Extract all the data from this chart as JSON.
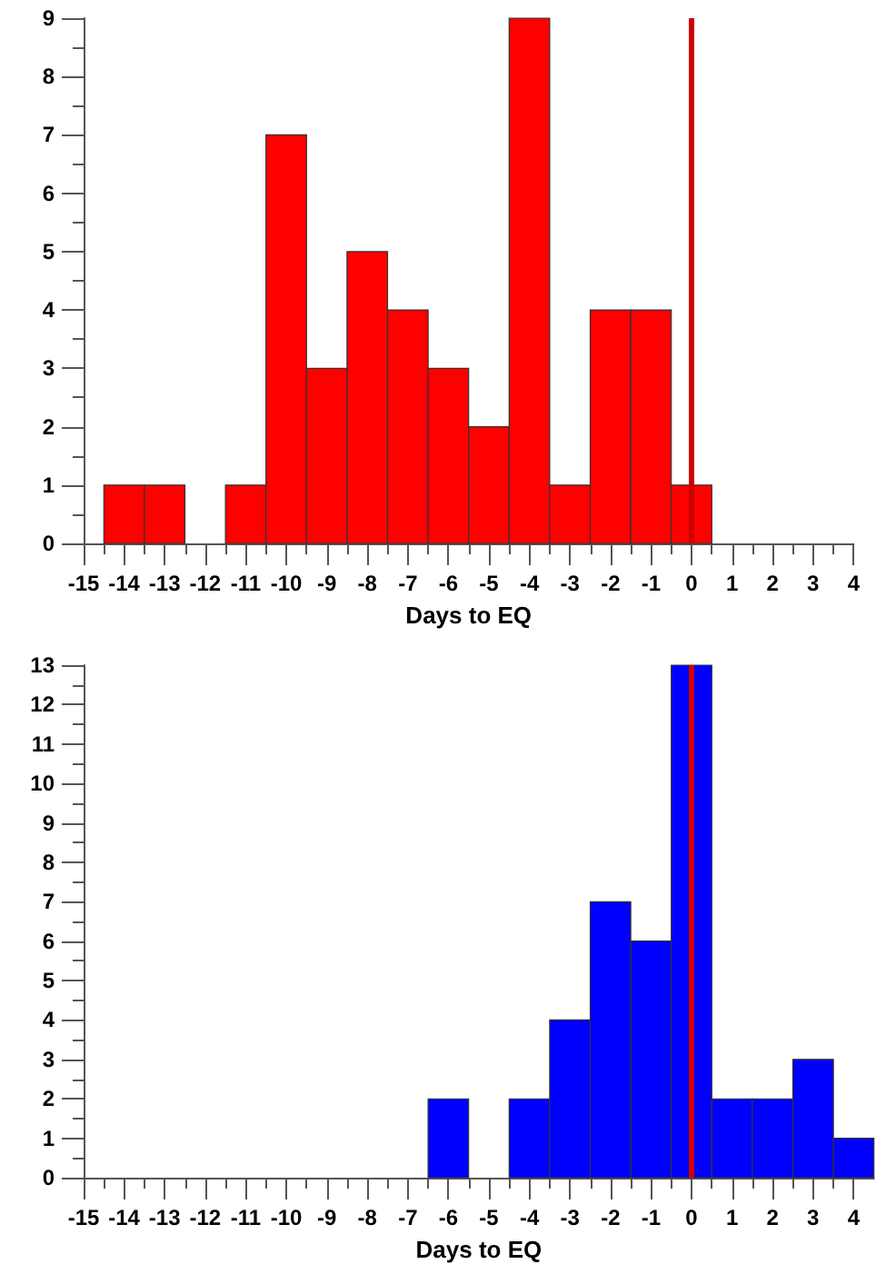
{
  "chart_data": [
    {
      "type": "histogram",
      "xlabel": "Days to EQ",
      "bins": [
        -14.5,
        -13.5,
        -12.5,
        -11.5,
        -10.5,
        -9.5,
        -8.5,
        -7.5,
        -6.5,
        -5.5,
        -4.5,
        -3.5,
        -2.5,
        -1.5,
        -0.5,
        0.5
      ],
      "values": [
        1,
        1,
        0,
        1,
        7,
        3,
        5,
        4,
        3,
        2,
        9,
        1,
        4,
        4,
        1
      ],
      "color": "#ff0000",
      "xlim": [
        -15,
        4
      ],
      "ylim": [
        0,
        9
      ],
      "xticks": [
        -15,
        {
          "value": -14.5,
          "label": null
        },
        -14,
        {
          "value": -13.5,
          "label": null
        },
        -13,
        {
          "value": -12.5,
          "label": null
        },
        -12,
        {
          "value": -11.5,
          "label": null
        },
        -11,
        {
          "value": -10.5,
          "label": null
        },
        -10,
        {
          "value": -9.5,
          "label": null
        },
        -9,
        {
          "value": -8.5,
          "label": null
        },
        -8,
        {
          "value": -7.5,
          "label": null
        },
        -7,
        {
          "value": -6.5,
          "label": null
        },
        -6,
        {
          "value": -5.5,
          "label": null
        },
        -5,
        {
          "value": -4.5,
          "label": null
        },
        -4,
        {
          "value": -3.5,
          "label": null
        },
        -3,
        {
          "value": -2.5,
          "label": null
        },
        -2,
        {
          "value": -1.5,
          "label": null
        },
        -1,
        {
          "value": -0.5,
          "label": null
        },
        0,
        {
          "value": 0.5,
          "label": null
        },
        1,
        {
          "value": 1.5,
          "label": null
        },
        2,
        {
          "value": 2.5,
          "label": null
        },
        3,
        {
          "value": 3.5,
          "label": null
        },
        4
      ],
      "yticks": [
        0,
        {
          "value": 0.5,
          "label": null
        },
        1,
        {
          "value": 1.5,
          "label": null
        },
        2,
        {
          "value": 2.5,
          "label": null
        },
        3,
        {
          "value": 3.5,
          "label": null
        },
        4,
        {
          "value": 4.5,
          "label": null
        },
        5,
        {
          "value": 5.5,
          "label": null
        },
        6,
        {
          "value": 6.5,
          "label": null
        },
        7,
        {
          "value": 7.5,
          "label": null
        },
        8,
        {
          "value": 8.5,
          "label": null
        },
        9
      ],
      "ref_lines": [
        {
          "axis": "x",
          "value": 0,
          "color": "#cc0000"
        }
      ]
    },
    {
      "type": "histogram",
      "xlabel": "Days to EQ",
      "bins": [
        -6.5,
        -5.5,
        -4.5,
        -3.5,
        -2.5,
        -1.5,
        -0.5,
        0.5,
        1.5,
        2.5,
        3.5,
        4.5
      ],
      "values": [
        2,
        0,
        2,
        4,
        7,
        6,
        13,
        2,
        2,
        3,
        1
      ],
      "color": "#0000ff",
      "xlim": [
        -15,
        4.5
      ],
      "ylim": [
        0,
        13
      ],
      "xticks": [
        -15,
        {
          "value": -14.5,
          "label": null
        },
        -14,
        {
          "value": -13.5,
          "label": null
        },
        -13,
        {
          "value": -12.5,
          "label": null
        },
        -12,
        {
          "value": -11.5,
          "label": null
        },
        -11,
        {
          "value": -10.5,
          "label": null
        },
        -10,
        {
          "value": -9.5,
          "label": null
        },
        -9,
        {
          "value": -8.5,
          "label": null
        },
        -8,
        {
          "value": -7.5,
          "label": null
        },
        -7,
        {
          "value": -6.5,
          "label": null
        },
        -6,
        {
          "value": -5.5,
          "label": null
        },
        -5,
        {
          "value": -4.5,
          "label": null
        },
        -4,
        {
          "value": -3.5,
          "label": null
        },
        -3,
        {
          "value": -2.5,
          "label": null
        },
        -2,
        {
          "value": -1.5,
          "label": null
        },
        -1,
        {
          "value": -0.5,
          "label": null
        },
        0,
        {
          "value": 0.5,
          "label": null
        },
        1,
        {
          "value": 1.5,
          "label": null
        },
        2,
        {
          "value": 2.5,
          "label": null
        },
        3,
        {
          "value": 3.5,
          "label": null
        },
        4
      ],
      "yticks": [
        0,
        {
          "value": 0.5,
          "label": null
        },
        1,
        {
          "value": 1.5,
          "label": null
        },
        2,
        {
          "value": 2.5,
          "label": null
        },
        3,
        {
          "value": 3.5,
          "label": null
        },
        4,
        {
          "value": 4.5,
          "label": null
        },
        5,
        {
          "value": 5.5,
          "label": null
        },
        6,
        {
          "value": 6.5,
          "label": null
        },
        7,
        {
          "value": 7.5,
          "label": null
        },
        8,
        {
          "value": 8.5,
          "label": null
        },
        9,
        {
          "value": 9.5,
          "label": null
        },
        10,
        {
          "value": 10.5,
          "label": null
        },
        11,
        {
          "value": 11.5,
          "label": null
        },
        12,
        {
          "value": 12.5,
          "label": null
        },
        13
      ],
      "ref_lines": [
        {
          "axis": "x",
          "value": 0,
          "color": "#cc0000"
        }
      ]
    }
  ]
}
